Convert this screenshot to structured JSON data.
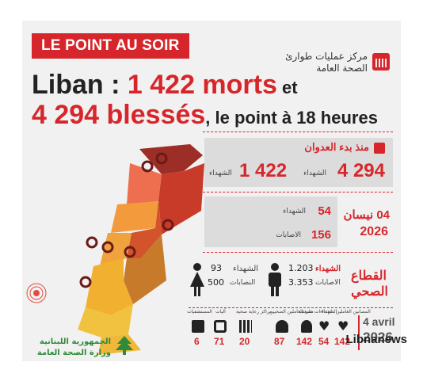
{
  "banner": "LE POINT AU SOIR",
  "source": {
    "line1": "مركز عمليات طوارئ",
    "line2": "الصحة العامة"
  },
  "headline": {
    "l1_a": "Liban : ",
    "l1_b": "1 422 morts",
    "l1_c": " et",
    "l2_a": "4 294 blessés",
    "l2_b": ", le point à 18 heures"
  },
  "since": {
    "title": "منذ بدء العدوان",
    "wounded_num": "4 294",
    "wounded_label": "الشهداء",
    "dead_num": "1 422",
    "dead_label": "الشهداء"
  },
  "day": {
    "date_ar": "04 نيسان",
    "year": "2026",
    "dead_num": "54",
    "dead_label": "الشهداء",
    "wounded_num": "156",
    "wounded_label": "الاصابات"
  },
  "health": {
    "title_1": "القطاع",
    "title_2": "الصحي",
    "male_dead": "1.203",
    "male_wounded": "3.353",
    "male_dead_label": "الشهداء",
    "male_wounded_label": "الاصابات",
    "female_dead": "93",
    "female_wounded": "500",
    "female_dead_label": "الشهداء",
    "female_wounded_label": "النصابات"
  },
  "icons": [
    {
      "icon": "hospital-icon",
      "label": "المستشفيات",
      "value": "6"
    },
    {
      "icon": "ambulance-icon",
      "label": "آليات",
      "value": "71"
    },
    {
      "icon": "building-icon",
      "label": "مراكز رعاية صحية",
      "value": "20"
    },
    {
      "icon": "injured-icon",
      "label": "اعتداءات على العاملين الصحيين",
      "value": "87"
    },
    {
      "icon": "worker-icon",
      "label": "مسعف",
      "value": "142"
    },
    {
      "icon": "heart-icon",
      "label": "الشهداء",
      "value": "54"
    },
    {
      "icon": "heart-hand-icon",
      "label": "المصابين العاملين",
      "value": "142"
    }
  ],
  "footer_date": {
    "day": "4 avril",
    "year": "2026"
  },
  "ministry": {
    "line1": "الجمهورية اللبنانية",
    "line2": "وزارة الصحة العامة"
  },
  "brand": "Libnanews",
  "colors": {
    "accent": "#d7262b",
    "map_dark": "#b2322b",
    "map_orange": "#e7862e",
    "map_yellow": "#f1b63a"
  }
}
